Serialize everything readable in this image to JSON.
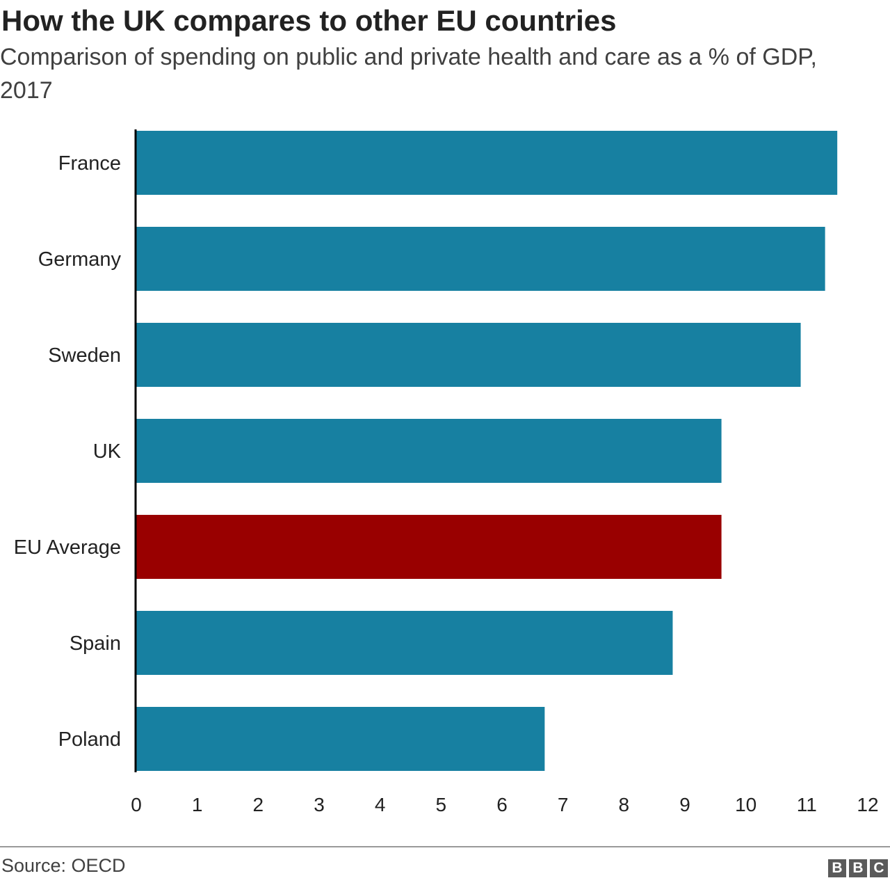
{
  "title": "How the UK compares to other EU countries",
  "subtitle": "Comparison of spending on public and private health and care as a % of GDP, 2017",
  "source": "Source: OECD",
  "logo": [
    "B",
    "B",
    "C"
  ],
  "colors": {
    "bar": "#1780a1",
    "highlight": "#990000",
    "axis": "#000000"
  },
  "chart_data": {
    "type": "bar",
    "orientation": "horizontal",
    "categories": [
      "France",
      "Germany",
      "Sweden",
      "UK",
      "EU Average",
      "Spain",
      "Poland"
    ],
    "values": [
      11.5,
      11.3,
      10.9,
      9.6,
      9.6,
      8.8,
      6.7
    ],
    "highlight_category": "EU Average",
    "xlim": [
      0,
      12
    ],
    "xticks": [
      "0",
      "1",
      "2",
      "3",
      "4",
      "5",
      "6",
      "7",
      "8",
      "9",
      "10",
      "11",
      "12"
    ],
    "grid": false,
    "legend": "none"
  }
}
